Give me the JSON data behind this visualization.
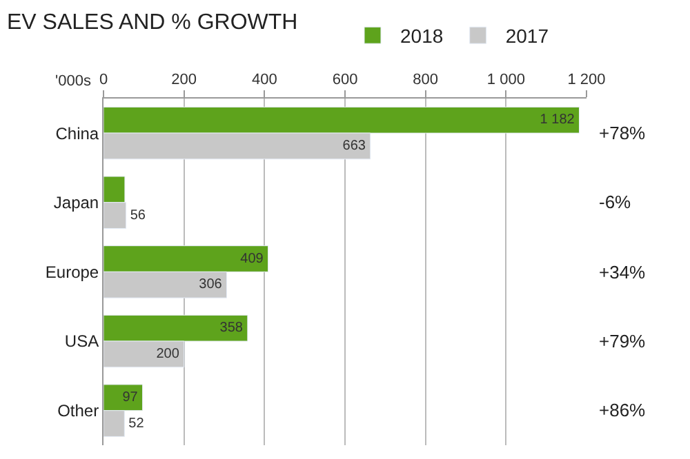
{
  "chart_data": {
    "type": "bar",
    "orientation": "horizontal",
    "title": "EV SALES AND % GROWTH",
    "xlabel": "'000s",
    "categories": [
      "China",
      "Japan",
      "Europe",
      "USA",
      "Other"
    ],
    "series": [
      {
        "name": "2018",
        "color": "#5ea31c",
        "values": [
          1182,
          53,
          409,
          358,
          97
        ],
        "value_labels": [
          "1 182",
          null,
          "409",
          "358",
          "97"
        ]
      },
      {
        "name": "2017",
        "color": "#c8c8c8",
        "values": [
          663,
          56,
          306,
          200,
          52
        ],
        "value_labels": [
          "663",
          "56",
          "306",
          "200",
          "52"
        ]
      }
    ],
    "xlim": [
      0,
      1200
    ],
    "xticks": [
      0,
      200,
      400,
      600,
      800,
      {
        "value": 1000,
        "label": "1 000"
      },
      {
        "value": 1200,
        "label": "1 200"
      }
    ],
    "grid": "x",
    "legend": "top",
    "annotations": [
      "+78%",
      "-6%",
      "+34%",
      "+79%",
      "+86%"
    ]
  }
}
